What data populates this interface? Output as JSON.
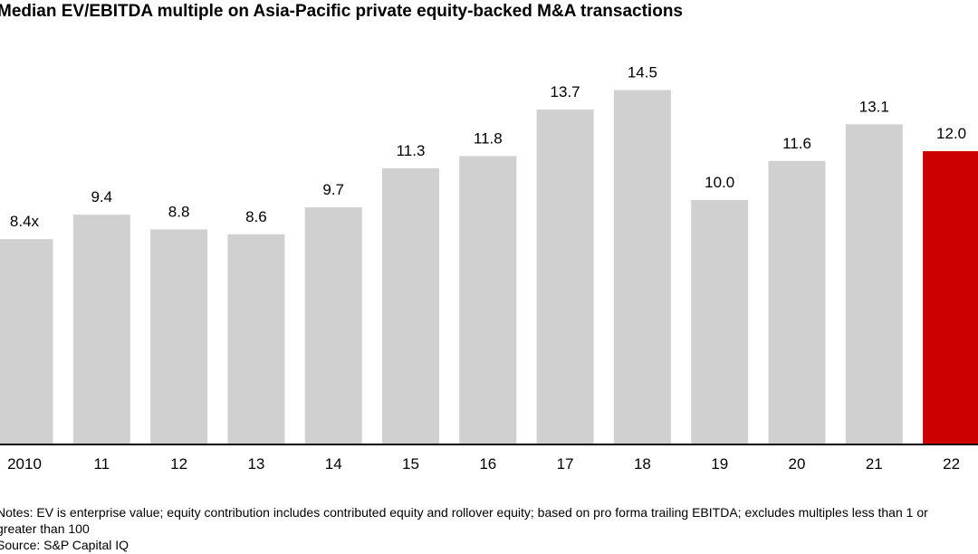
{
  "chart_data": {
    "type": "bar",
    "title": "Median EV/EBITDA multiple on Asia-Pacific private equity-backed M&A transactions",
    "categories": [
      "2010",
      "11",
      "12",
      "13",
      "14",
      "15",
      "16",
      "17",
      "18",
      "19",
      "20",
      "21",
      "22"
    ],
    "values": [
      8.4,
      9.4,
      8.8,
      8.6,
      9.7,
      11.3,
      11.8,
      13.7,
      14.5,
      10.0,
      11.6,
      13.1,
      12.0
    ],
    "value_labels": [
      "8.4x",
      "9.4",
      "8.8",
      "8.6",
      "9.7",
      "11.3",
      "11.8",
      "13.7",
      "14.5",
      "10.0",
      "11.6",
      "13.1",
      "12.0"
    ],
    "colors": [
      "#d0d0d0",
      "#d0d0d0",
      "#d0d0d0",
      "#d0d0d0",
      "#d0d0d0",
      "#d0d0d0",
      "#d0d0d0",
      "#d0d0d0",
      "#d0d0d0",
      "#d0d0d0",
      "#d0d0d0",
      "#d0d0d0",
      "#cc0000"
    ],
    "notes": "Notes: EV is enterprise value; equity contribution includes contributed equity and rollover equity; based on pro forma trailing EBITDA; excludes multiples less than 1 or greater than 100",
    "source": "Source: S&P Capital IQ"
  }
}
